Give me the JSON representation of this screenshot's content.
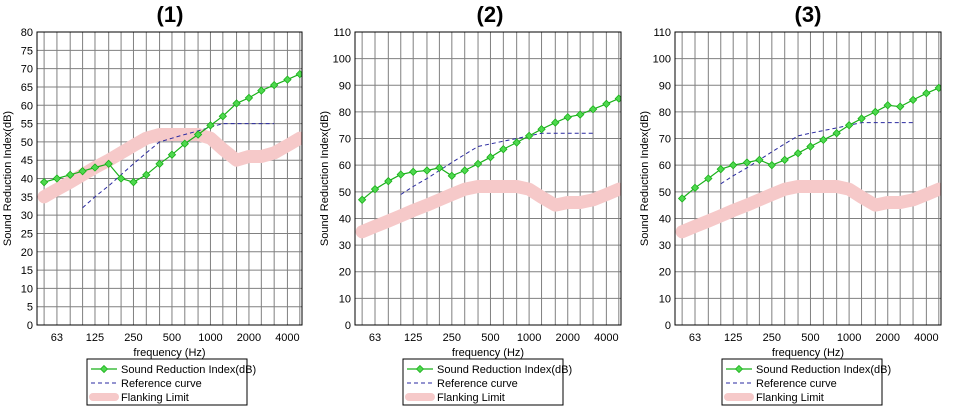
{
  "chart_data": [
    {
      "type": "line",
      "title": "(1)",
      "xlabel": "frequency (Hz)",
      "ylabel": "Sound Reduction Index(dB)",
      "x_scale": "log",
      "x_ticks": [
        63,
        125,
        250,
        500,
        1000,
        2000,
        4000
      ],
      "ylim": [
        0,
        80
      ],
      "y_ticks": [
        0,
        5,
        10,
        15,
        20,
        25,
        30,
        35,
        40,
        45,
        50,
        55,
        60,
        65,
        70,
        75,
        80
      ],
      "grid": true,
      "legend": [
        "Sound Reduction Index(dB)",
        "Reference curve",
        "Flanking Limit"
      ],
      "series": [
        {
          "name": "Sound Reduction Index(dB)",
          "x": [
            50,
            63,
            80,
            100,
            125,
            160,
            200,
            250,
            315,
            400,
            500,
            630,
            800,
            1000,
            1250,
            1600,
            2000,
            2500,
            3150,
            4000,
            5000
          ],
          "values": [
            39,
            40,
            41,
            42,
            43,
            44,
            40,
            39,
            41,
            44,
            46.5,
            49.5,
            52,
            54.5,
            57,
            60.5,
            62,
            64,
            65.5,
            67,
            68.5
          ]
        },
        {
          "name": "Reference curve",
          "x": [
            100,
            125,
            160,
            200,
            250,
            315,
            400,
            500,
            630,
            800,
            1000,
            1250,
            1600,
            2000,
            2500,
            3150
          ],
          "values": [
            32,
            35,
            38,
            41,
            44,
            47,
            50,
            51,
            52,
            53,
            54,
            55,
            55,
            55,
            55,
            55
          ]
        },
        {
          "name": "Flanking Limit",
          "x": [
            50,
            63,
            80,
            100,
            125,
            160,
            200,
            250,
            315,
            400,
            500,
            630,
            800,
            1000,
            1250,
            1600,
            2000,
            2500,
            3150,
            4000,
            5000
          ],
          "values": [
            35,
            37,
            39,
            41,
            43,
            45,
            47,
            49,
            51,
            52,
            52,
            52,
            52,
            51,
            48,
            45,
            46,
            46,
            47,
            49,
            51
          ]
        }
      ]
    },
    {
      "type": "line",
      "title": "(2)",
      "xlabel": "frequency (Hz)",
      "ylabel": "Sound Reduction Index(dB)",
      "x_scale": "log",
      "x_ticks": [
        63,
        125,
        250,
        500,
        1000,
        2000,
        4000
      ],
      "ylim": [
        0,
        110
      ],
      "y_ticks": [
        0,
        10,
        20,
        30,
        40,
        50,
        60,
        70,
        80,
        90,
        100,
        110
      ],
      "grid": true,
      "legend": [
        "Sound Reduction Index(dB)",
        "Reference curve",
        "Flanking Limit"
      ],
      "series": [
        {
          "name": "Sound Reduction Index(dB)",
          "x": [
            50,
            63,
            80,
            100,
            125,
            160,
            200,
            250,
            315,
            400,
            500,
            630,
            800,
            1000,
            1250,
            1600,
            2000,
            2500,
            3150,
            4000,
            5000
          ],
          "values": [
            47,
            51,
            54,
            56.5,
            57.5,
            58,
            59,
            56,
            58,
            60.5,
            63,
            66,
            68.5,
            71,
            73.5,
            76,
            78,
            79,
            81,
            83,
            85
          ]
        },
        {
          "name": "Reference curve",
          "x": [
            100,
            125,
            160,
            200,
            250,
            315,
            400,
            500,
            630,
            800,
            1000,
            1250,
            1600,
            2000,
            2500,
            3150
          ],
          "values": [
            49,
            52,
            55,
            58,
            61,
            64,
            67,
            68,
            69,
            70,
            71,
            72,
            72,
            72,
            72,
            72
          ]
        },
        {
          "name": "Flanking Limit",
          "x": [
            50,
            63,
            80,
            100,
            125,
            160,
            200,
            250,
            315,
            400,
            500,
            630,
            800,
            1000,
            1250,
            1600,
            2000,
            2500,
            3150,
            4000,
            5000
          ],
          "values": [
            35,
            37,
            39,
            41,
            43,
            45,
            47,
            49,
            51,
            52,
            52,
            52,
            52,
            51,
            48,
            45,
            46,
            46,
            47,
            49,
            51
          ]
        }
      ]
    },
    {
      "type": "line",
      "title": "(3)",
      "xlabel": "frequency (Hz)",
      "ylabel": "Sound Reduction Index(dB)",
      "x_scale": "log",
      "x_ticks": [
        63,
        125,
        250,
        500,
        1000,
        2000,
        4000
      ],
      "ylim": [
        0,
        110
      ],
      "y_ticks": [
        0,
        10,
        20,
        30,
        40,
        50,
        60,
        70,
        80,
        90,
        100,
        110
      ],
      "grid": true,
      "legend": [
        "Sound Reduction Index(dB)",
        "Reference curve",
        "Flanking Limit"
      ],
      "series": [
        {
          "name": "Sound Reduction Index(dB)",
          "x": [
            50,
            63,
            80,
            100,
            125,
            160,
            200,
            250,
            315,
            400,
            500,
            630,
            800,
            1000,
            1250,
            1600,
            2000,
            2500,
            3150,
            4000,
            5000
          ],
          "values": [
            47.5,
            51.5,
            55,
            58.5,
            60,
            61,
            62,
            60,
            62,
            64.5,
            67,
            69.5,
            72,
            75,
            77.5,
            80,
            82.5,
            82,
            84.5,
            87,
            89
          ]
        },
        {
          "name": "Reference curve",
          "x": [
            100,
            125,
            160,
            200,
            250,
            315,
            400,
            500,
            630,
            800,
            1000,
            1250,
            1600,
            2000,
            2500,
            3150
          ],
          "values": [
            53,
            56,
            59,
            62,
            65,
            68,
            71,
            72,
            73,
            74,
            75,
            76,
            76,
            76,
            76,
            76
          ]
        },
        {
          "name": "Flanking Limit",
          "x": [
            50,
            63,
            80,
            100,
            125,
            160,
            200,
            250,
            315,
            400,
            500,
            630,
            800,
            1000,
            1250,
            1600,
            2000,
            2500,
            3150,
            4000,
            5000
          ],
          "values": [
            35,
            37,
            39,
            41,
            43,
            45,
            47,
            49,
            51,
            52,
            52,
            52,
            52,
            51,
            48,
            45,
            46,
            46,
            47,
            49,
            51
          ]
        }
      ]
    }
  ],
  "colors": {
    "sri": "#19b019",
    "sri_marker": "#4ed84e",
    "reference": "#2a2aa0",
    "flanking": "#f6c9c9",
    "grid": "#808080",
    "plot_bg": "#ffffff"
  }
}
